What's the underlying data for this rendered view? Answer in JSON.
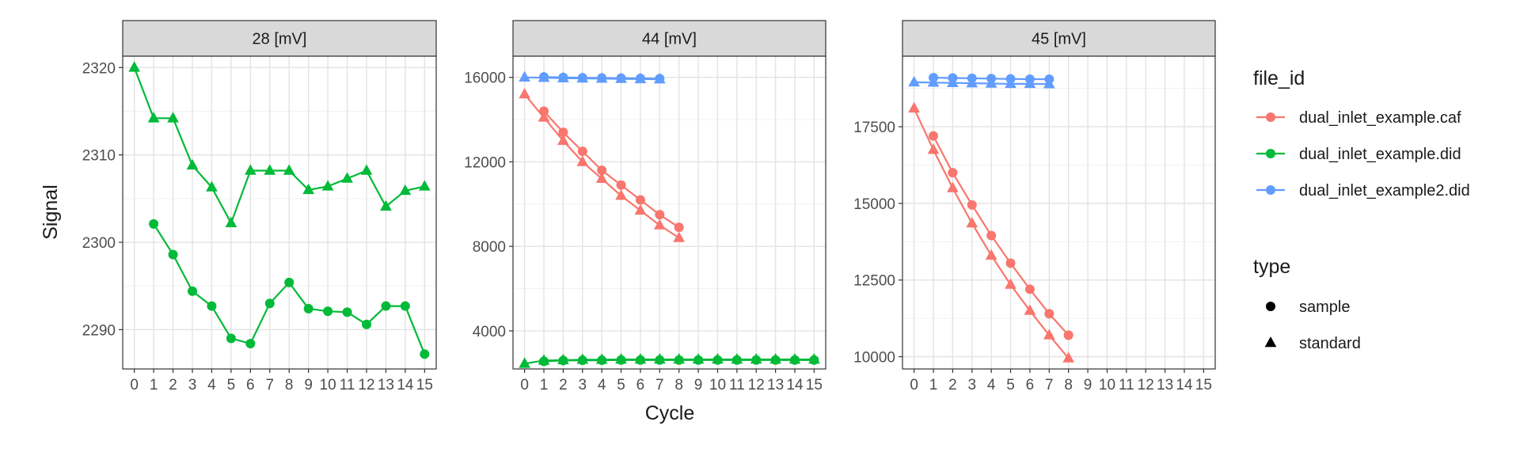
{
  "chart_data": {
    "type": "line",
    "facet_variable": "mass",
    "xlabel": "Cycle",
    "ylabel": "Signal",
    "x_ticks": [
      0,
      1,
      2,
      3,
      4,
      5,
      6,
      7,
      8,
      9,
      10,
      11,
      12,
      13,
      14,
      15
    ],
    "colors": {
      "dual_inlet_example.caf": "#F8766D",
      "dual_inlet_example.did": "#00BA38",
      "dual_inlet_example2.did": "#619CFF"
    },
    "legend": {
      "position": "right",
      "color_title": "file_id",
      "color_entries": [
        "dual_inlet_example.caf",
        "dual_inlet_example.did",
        "dual_inlet_example2.did"
      ],
      "shape_title": "type",
      "shape_entries": [
        {
          "label": "sample",
          "shape": "circle"
        },
        {
          "label": "standard",
          "shape": "triangle"
        }
      ]
    },
    "panels": [
      {
        "title": "28 [mV]",
        "ylim": [
          2285.5,
          2321.3
        ],
        "yticks": [
          2290,
          2300,
          2310,
          2320
        ],
        "series": [
          {
            "file_id": "dual_inlet_example.did",
            "type": "standard",
            "x": [
              0,
              1,
              2,
              3,
              4,
              5,
              6,
              7,
              8,
              9,
              10,
              11,
              12,
              13,
              14,
              15
            ],
            "y": [
              2320.0,
              2314.2,
              2314.2,
              2308.8,
              2306.3,
              2302.2,
              2308.2,
              2308.2,
              2308.2,
              2306.0,
              2306.4,
              2307.3,
              2308.2,
              2304.1,
              2305.9,
              2306.4
            ]
          },
          {
            "file_id": "dual_inlet_example.did",
            "type": "sample",
            "x": [
              1,
              2,
              3,
              4,
              5,
              6,
              7,
              8,
              9,
              10,
              11,
              12,
              13,
              14,
              15
            ],
            "y": [
              2302.1,
              2298.6,
              2294.4,
              2292.7,
              2289.0,
              2288.4,
              2293.0,
              2295.4,
              2292.4,
              2292.1,
              2292.0,
              2290.6,
              2292.7,
              2292.7,
              2287.2
            ]
          }
        ]
      },
      {
        "title": "44 [mV]",
        "ylim": [
          2200,
          17000
        ],
        "yticks": [
          4000,
          8000,
          12000,
          16000
        ],
        "series": [
          {
            "file_id": "dual_inlet_example.caf",
            "type": "standard",
            "x": [
              0,
              1,
              2,
              3,
              4,
              5,
              6,
              7,
              8
            ],
            "y": [
              15200,
              14100,
              13000,
              12000,
              11200,
              10400,
              9700,
              9000,
              8400
            ]
          },
          {
            "file_id": "dual_inlet_example.caf",
            "type": "sample",
            "x": [
              1,
              2,
              3,
              4,
              5,
              6,
              7,
              8
            ],
            "y": [
              14400,
              13400,
              12500,
              11600,
              10900,
              10200,
              9500,
              8900
            ]
          },
          {
            "file_id": "dual_inlet_example.did",
            "type": "standard",
            "x": [
              0,
              1,
              2,
              3,
              4,
              5,
              6,
              7,
              8,
              9,
              10,
              11,
              12,
              13,
              14,
              15
            ],
            "y": [
              2450,
              2600,
              2620,
              2640,
              2640,
              2650,
              2650,
              2650,
              2650,
              2650,
              2650,
              2650,
              2650,
              2650,
              2650,
              2650
            ]
          },
          {
            "file_id": "dual_inlet_example.did",
            "type": "sample",
            "x": [
              1,
              2,
              3,
              4,
              5,
              6,
              7,
              8,
              9,
              10,
              11,
              12,
              13,
              14,
              15
            ],
            "y": [
              2560,
              2600,
              2610,
              2610,
              2620,
              2620,
              2620,
              2620,
              2620,
              2620,
              2620,
              2620,
              2620,
              2620,
              2620
            ]
          },
          {
            "file_id": "dual_inlet_example2.did",
            "type": "standard",
            "x": [
              0,
              1,
              2,
              3,
              4,
              5,
              6,
              7
            ],
            "y": [
              16000,
              15980,
              15960,
              15950,
              15940,
              15930,
              15920,
              15910
            ]
          },
          {
            "file_id": "dual_inlet_example2.did",
            "type": "sample",
            "x": [
              1,
              2,
              3,
              4,
              5,
              6,
              7
            ],
            "y": [
              16020,
              16000,
              15980,
              15970,
              15960,
              15950,
              15940
            ]
          }
        ]
      },
      {
        "title": "45 [mV]",
        "ylim": [
          9600,
          19800
        ],
        "yticks": [
          10000,
          12500,
          15000,
          17500
        ],
        "series": [
          {
            "file_id": "dual_inlet_example.caf",
            "type": "standard",
            "x": [
              0,
              1,
              2,
              3,
              4,
              5,
              6,
              7,
              8
            ],
            "y": [
              18100,
              16750,
              15500,
              14350,
              13300,
              12350,
              11500,
              10700,
              9950
            ]
          },
          {
            "file_id": "dual_inlet_example.caf",
            "type": "sample",
            "x": [
              1,
              2,
              3,
              4,
              5,
              6,
              7,
              8
            ],
            "y": [
              17200,
              16000,
              14950,
              13950,
              13050,
              12200,
              11400,
              10700
            ]
          },
          {
            "file_id": "dual_inlet_example2.did",
            "type": "standard",
            "x": [
              0,
              1,
              2,
              3,
              4,
              5,
              6,
              7
            ],
            "y": [
              18950,
              18940,
              18930,
              18920,
              18910,
              18900,
              18900,
              18890
            ]
          },
          {
            "file_id": "dual_inlet_example2.did",
            "type": "sample",
            "x": [
              1,
              2,
              3,
              4,
              5,
              6,
              7
            ],
            "y": [
              19100,
              19090,
              19080,
              19070,
              19060,
              19050,
              19050
            ]
          }
        ]
      }
    ]
  }
}
